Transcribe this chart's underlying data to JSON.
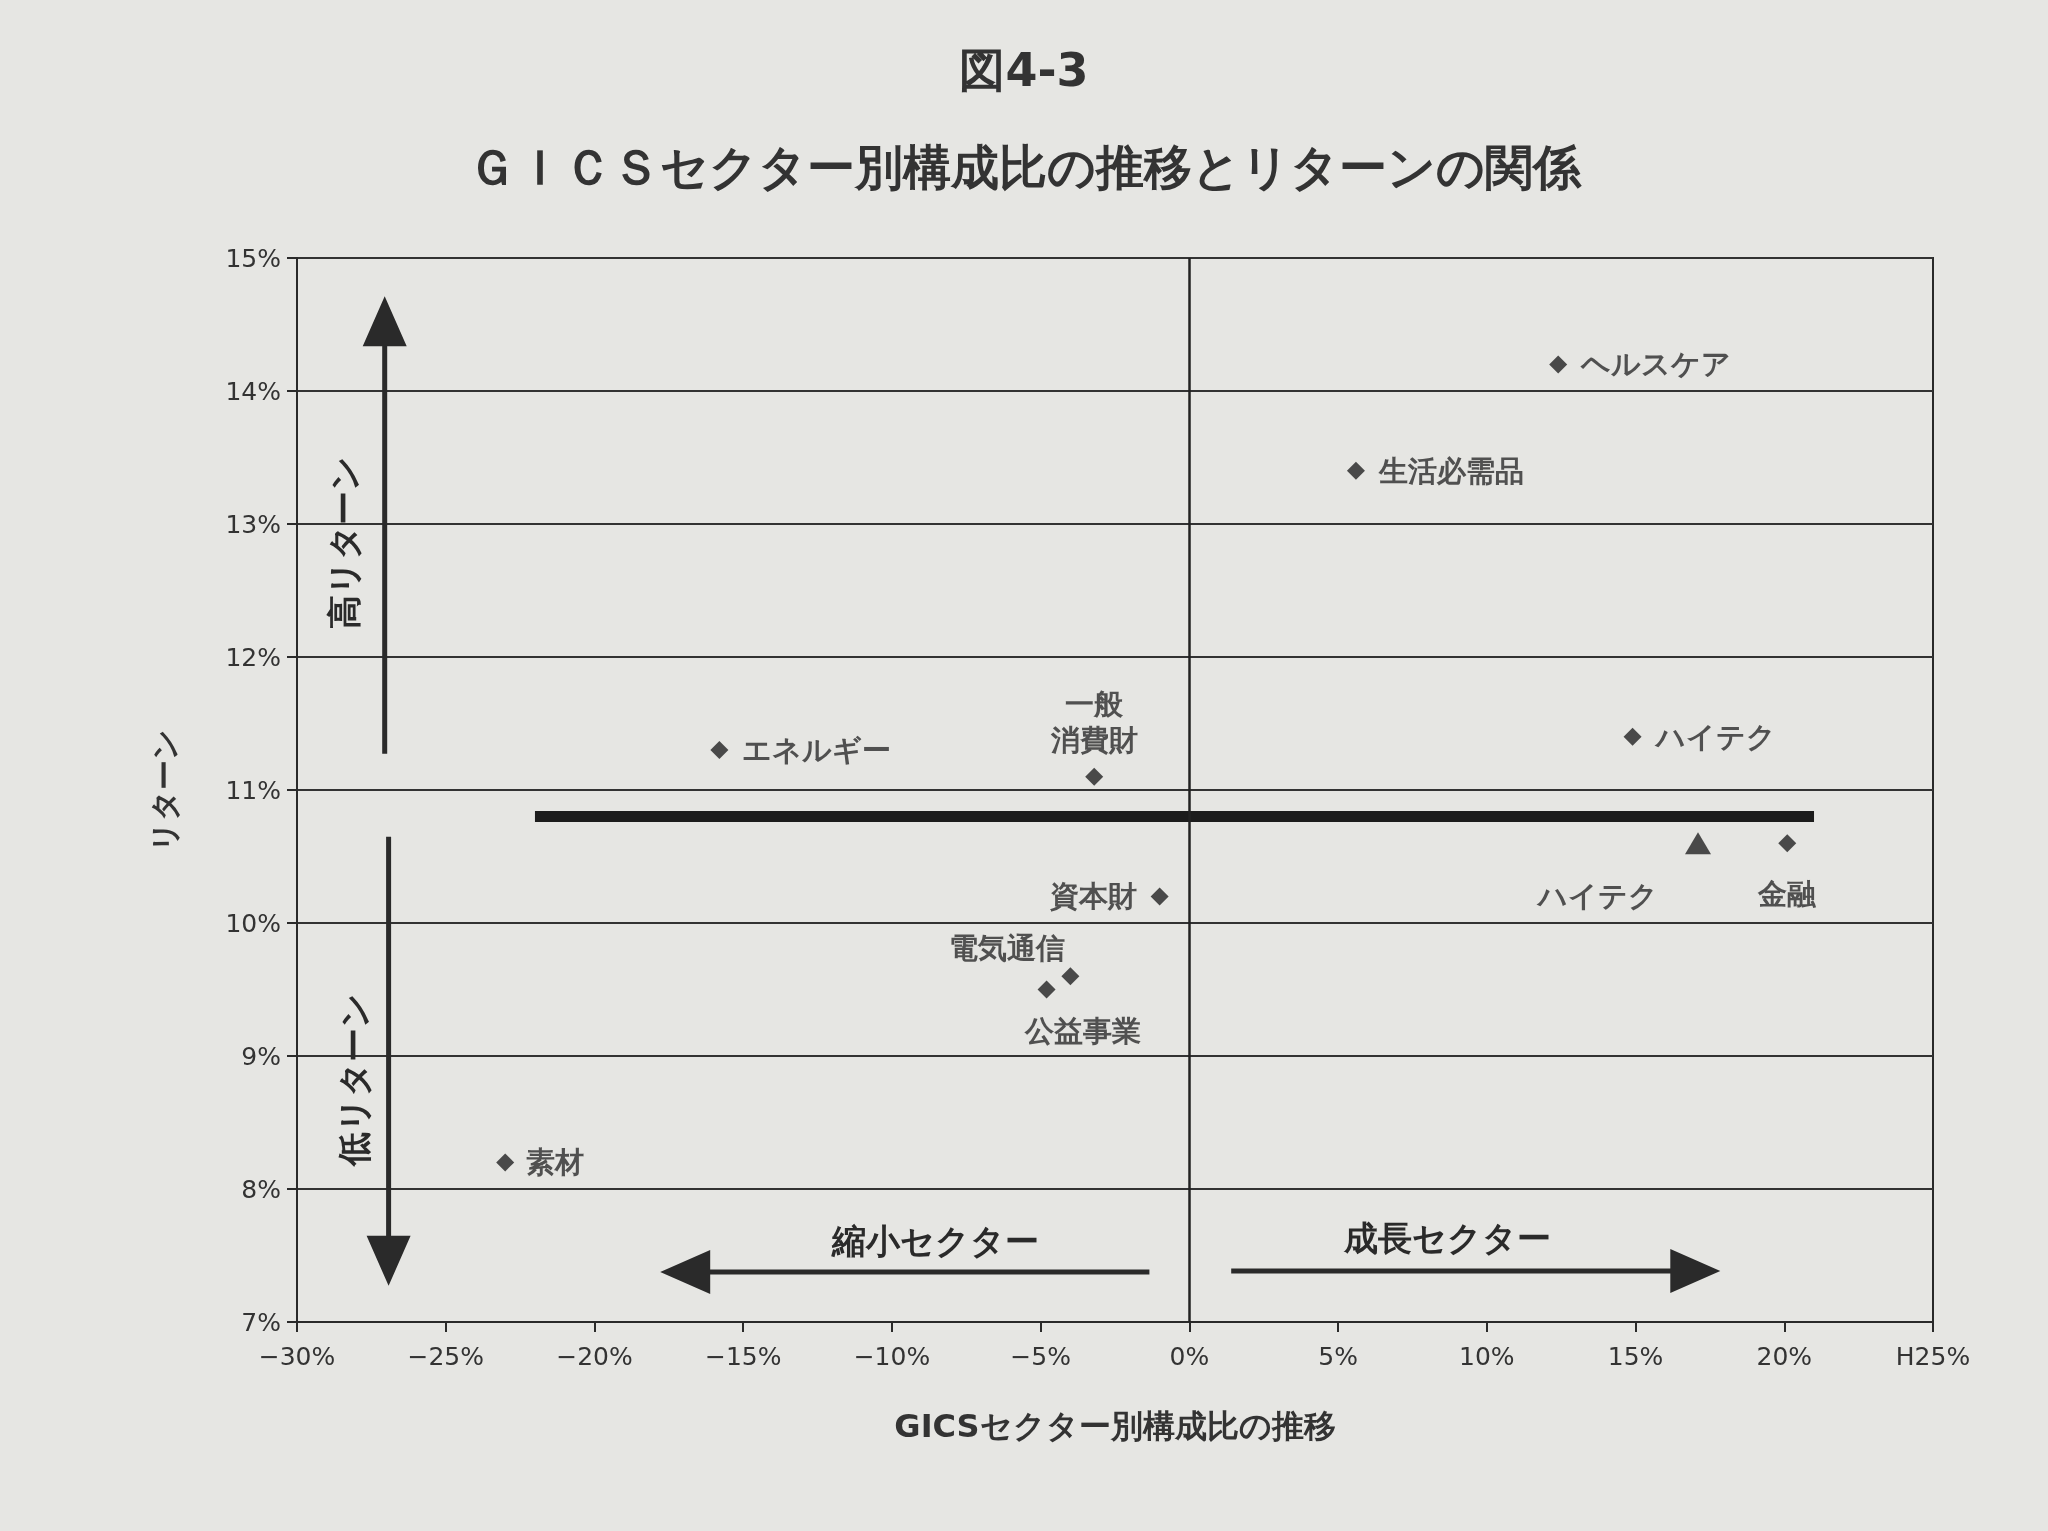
{
  "chart_data": {
    "type": "scatter",
    "title": "図4-3",
    "subtitle": "ＧＩＣＳセクター別構成比の推移とリターンの関係",
    "xlabel": "GICSセクター別構成比の推移",
    "ylabel": "リターン",
    "xlim": [
      -30,
      25
    ],
    "xticks": [
      {
        "value": -30,
        "label": "−30%"
      },
      {
        "value": -25,
        "label": "−25%"
      },
      {
        "value": -20,
        "label": "−20%"
      },
      {
        "value": -15,
        "label": "−15%"
      },
      {
        "value": -10,
        "label": "−10%"
      },
      {
        "value": -5,
        "label": "−5%"
      },
      {
        "value": 0,
        "label": "0%"
      },
      {
        "value": 5,
        "label": "5%"
      },
      {
        "value": 10,
        "label": "10%"
      },
      {
        "value": 15,
        "label": "15%"
      },
      {
        "value": 20,
        "label": "20%"
      },
      {
        "value": 25,
        "label": "H25%"
      }
    ],
    "ylim": [
      7,
      15
    ],
    "yticks": [
      {
        "value": 7,
        "label": "7%"
      },
      {
        "value": 8,
        "label": "8%"
      },
      {
        "value": 9,
        "label": "9%"
      },
      {
        "value": 10,
        "label": "10%"
      },
      {
        "value": 11,
        "label": "11%"
      },
      {
        "value": 12,
        "label": "12%"
      },
      {
        "value": 13,
        "label": "13%"
      },
      {
        "value": 14,
        "label": "14%"
      },
      {
        "value": 15,
        "label": "15%"
      }
    ],
    "grid": "y",
    "marker": "diamond",
    "series": [
      {
        "name": "ヘルスケア",
        "color": "#222222",
        "x": [
          12.4
        ],
        "values": [
          14.2
        ]
      },
      {
        "name": "生活必需品",
        "color": "#222222",
        "x": [
          5.6
        ],
        "values": [
          13.4
        ]
      },
      {
        "name": "エネルギー",
        "color": "#222222",
        "x": [
          -15.8
        ],
        "values": [
          11.3
        ]
      },
      {
        "name": "一般消費財",
        "color": "#222222",
        "x": [
          -3.2
        ],
        "values": [
          11.1
        ]
      },
      {
        "name": "ハイテク",
        "color": "#222222",
        "x": [
          14.9
        ],
        "values": [
          11.4
        ]
      },
      {
        "name": "ハイテク",
        "color": "#222222",
        "marker": "triangle",
        "x": [
          17.1
        ],
        "values": [
          10.6
        ]
      },
      {
        "name": "金融",
        "color": "#222222",
        "x": [
          20.1
        ],
        "values": [
          10.6
        ]
      },
      {
        "name": "資本財",
        "color": "#222222",
        "x": [
          -1.0
        ],
        "values": [
          10.2
        ]
      },
      {
        "name": "電気通信",
        "color": "#222222",
        "x": [
          -4.0
        ],
        "values": [
          9.6
        ]
      },
      {
        "name": "公益事業",
        "color": "#222222",
        "x": [
          -4.8
        ],
        "values": [
          9.5
        ]
      },
      {
        "name": "素材",
        "color": "#222222",
        "x": [
          -23.0
        ],
        "values": [
          8.2
        ]
      },
      {
        "type": "line",
        "color": "#1c1c1c",
        "marker": "none",
        "line_style": "solid",
        "x": [
          -22,
          21
        ],
        "values": [
          10.8,
          10.8
        ]
      }
    ],
    "ref_lines": [
      {
        "axis": "x",
        "value": 0,
        "color": "#222222"
      }
    ],
    "annotations": [
      "高リターン",
      "低リターン",
      "縮小セクター",
      "成長セクター"
    ]
  }
}
